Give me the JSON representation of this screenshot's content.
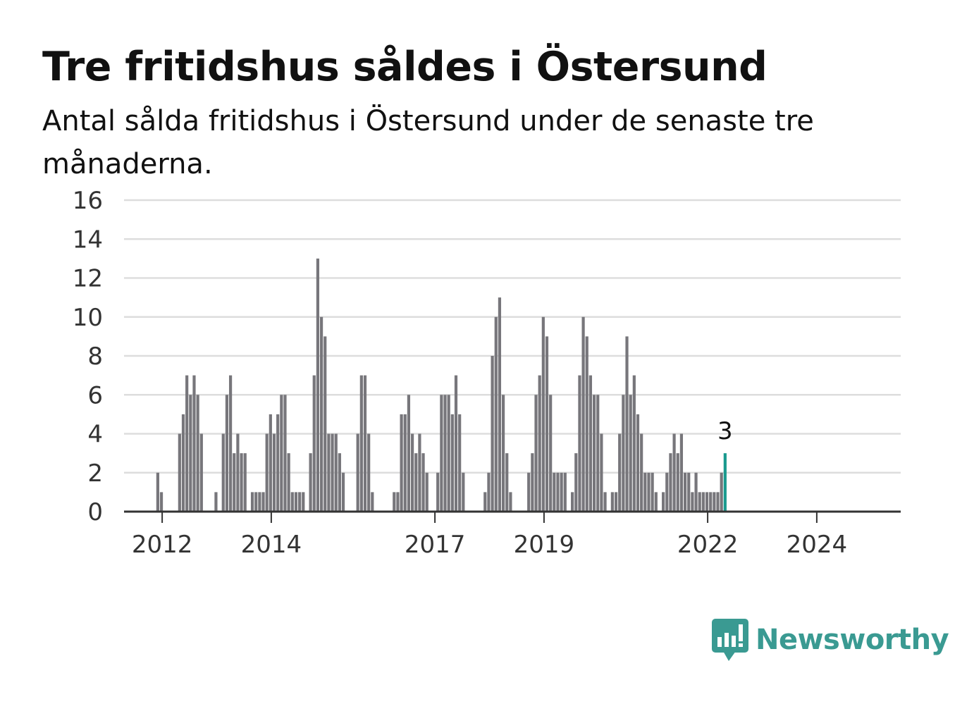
{
  "header": {
    "title": "Tre fritidshus såldes i Östersund",
    "subtitle": "Antal sålda fritidshus i Östersund under de senaste tre månaderna."
  },
  "brand": {
    "name": "Newsworthy",
    "color": "#3a9a92",
    "icon": "newsworthy-logo-icon"
  },
  "colors": {
    "bar": "#77767b",
    "highlight": "#1a9a8e",
    "grid": "#dddddd",
    "axis": "#333333"
  },
  "chart_data": {
    "type": "bar",
    "title": "Tre fritidshus såldes i Östersund",
    "subtitle": "Antal sålda fritidshus i Östersund under de senaste tre månaderna.",
    "xlabel": "",
    "ylabel": "",
    "ylim": [
      0,
      16
    ],
    "yticks": [
      0,
      2,
      4,
      6,
      8,
      10,
      12,
      14,
      16
    ],
    "xtick_labels": [
      "2012",
      "2014",
      "2017",
      "2019",
      "2022",
      "2024"
    ],
    "grid": true,
    "legend": "none",
    "highlight_value_label": "3",
    "values": [
      0,
      0,
      0,
      0,
      0,
      0,
      0,
      0,
      2,
      1,
      0,
      0,
      0,
      0,
      4,
      5,
      7,
      6,
      7,
      6,
      4,
      0,
      0,
      0,
      1,
      0,
      4,
      6,
      7,
      3,
      4,
      3,
      3,
      0,
      1,
      1,
      1,
      1,
      4,
      5,
      4,
      5,
      6,
      6,
      3,
      1,
      1,
      1,
      1,
      0,
      3,
      7,
      13,
      10,
      9,
      4,
      4,
      4,
      3,
      2,
      0,
      0,
      0,
      4,
      7,
      7,
      4,
      1,
      0,
      0,
      0,
      0,
      0,
      1,
      1,
      5,
      5,
      6,
      4,
      3,
      4,
      3,
      2,
      0,
      0,
      2,
      6,
      6,
      6,
      5,
      7,
      5,
      2,
      0,
      0,
      0,
      0,
      0,
      1,
      2,
      8,
      10,
      11,
      6,
      3,
      1,
      0,
      0,
      0,
      0,
      2,
      3,
      6,
      7,
      10,
      9,
      6,
      2,
      2,
      2,
      2,
      0,
      1,
      3,
      7,
      10,
      9,
      7,
      6,
      6,
      4,
      1,
      0,
      1,
      1,
      4,
      6,
      9,
      6,
      7,
      5,
      4,
      2,
      2,
      2,
      1,
      0,
      1,
      2,
      3,
      4,
      3,
      4,
      2,
      2,
      1,
      2,
      1,
      1,
      1,
      1,
      1,
      1,
      2,
      3
    ]
  }
}
